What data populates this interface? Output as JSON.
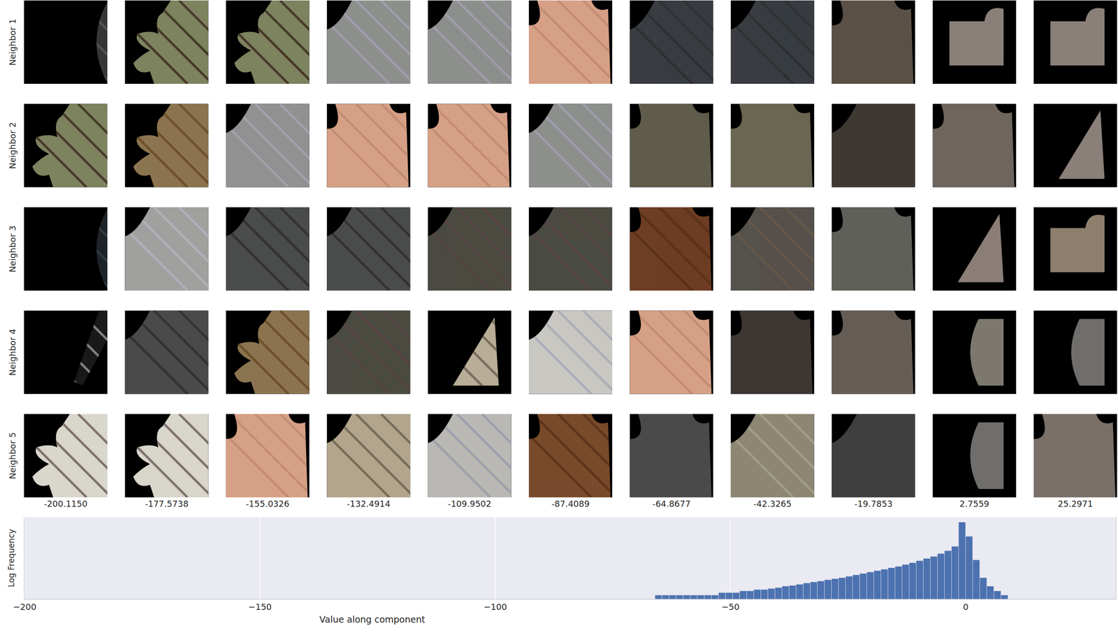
{
  "chart_data": {
    "type": "histogram",
    "xlabel": "Value along component",
    "ylabel": "Log Frequency",
    "log": "y",
    "grid": true,
    "tick_labels": "x",
    "color": "#4c72b0",
    "xlim": [
      -200.1,
      32
    ],
    "ylim": [
      1,
      1000000
    ],
    "xticks": [
      {
        "value": -200,
        "label": "−200"
      },
      {
        "value": -150,
        "label": "−150"
      },
      {
        "value": -100,
        "label": "−100"
      },
      {
        "value": -50,
        "label": "−50"
      },
      0
    ],
    "yticks": [],
    "bins": [
      -72,
      -70.5,
      -69,
      -67.5,
      -66,
      -64.5,
      -63,
      -61.5,
      -60,
      -58.5,
      -57,
      -55.5,
      -54,
      -52.5,
      -51,
      -49.5,
      -48,
      -46.5,
      -45,
      -43.5,
      -42,
      -40.5,
      -39,
      -37.5,
      -36,
      -34.5,
      -33,
      -31.5,
      -30,
      -28.5,
      -27,
      -25.5,
      -24,
      -22.5,
      -21,
      -19.5,
      -18,
      -16.5,
      -15,
      -13.5,
      -12,
      -10.5,
      -9,
      -7.5,
      -6,
      -4.5,
      -3,
      -1.5,
      0,
      1.5,
      3,
      4.5,
      6,
      7.5,
      9,
      10.5,
      12
    ],
    "counts": [
      1,
      1,
      1,
      1,
      2,
      2,
      2,
      2,
      2,
      2,
      2,
      2,
      2,
      3,
      3,
      3,
      4,
      4,
      5,
      5,
      6,
      7,
      9,
      10,
      12,
      15,
      18,
      21,
      26,
      31,
      37,
      47,
      59,
      76,
      96,
      122,
      155,
      198,
      251,
      339,
      458,
      657,
      942,
      1350,
      2184,
      3532,
      7261,
      431500,
      39000,
      741,
      37,
      9,
      4,
      2,
      1,
      1
    ],
    "row_labels": [
      "Neighbor 1",
      "Neighbor 2",
      "Neighbor 3",
      "Neighbor 4",
      "Neighbor 5"
    ],
    "columns": [
      {
        "value": -200.115,
        "label": "-200.1150"
      },
      {
        "value": -177.5738,
        "label": "-177.5738"
      },
      {
        "value": -155.0326,
        "label": "-155.0326"
      },
      {
        "value": -132.4914,
        "label": "-132.4914"
      },
      {
        "value": -109.9502,
        "label": "-109.9502"
      },
      {
        "value": -87.4089,
        "label": "-87.4089"
      },
      {
        "value": -64.8677,
        "label": "-64.8677"
      },
      {
        "value": -42.3265,
        "label": "-42.3265"
      },
      {
        "value": -19.7853,
        "label": "-19.7853"
      },
      {
        "value": 2.7559,
        "label": "2.7559"
      },
      {
        "value": 25.2971,
        "label": "25.2971"
      }
    ]
  }
}
